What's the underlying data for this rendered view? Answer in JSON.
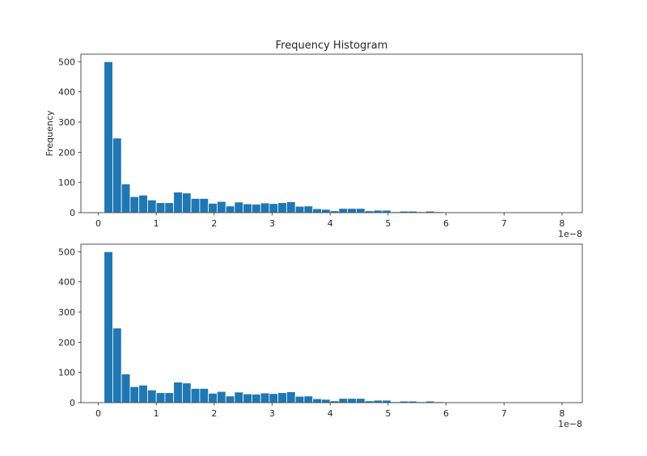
{
  "chart_data": [
    {
      "type": "bar",
      "title": "Frequency Histogram",
      "xlabel": "",
      "ylabel": "Frequency",
      "x_offset_label": "1e−8",
      "xlim": [
        -0.3,
        8.35
      ],
      "ylim": [
        0,
        525
      ],
      "xticks": [
        0,
        1,
        2,
        3,
        4,
        5,
        6,
        7,
        8
      ],
      "yticks": [
        0,
        100,
        200,
        300,
        400,
        500
      ],
      "bin_start": 0.1,
      "bin_width": 0.15,
      "values": [
        500,
        247,
        95,
        53,
        58,
        42,
        33,
        33,
        68,
        65,
        47,
        47,
        31,
        37,
        22,
        35,
        29,
        28,
        32,
        30,
        33,
        36,
        21,
        22,
        13,
        11,
        6,
        14,
        14,
        14,
        6,
        8,
        8,
        3,
        5,
        5,
        3,
        5,
        3,
        2,
        1,
        2,
        0,
        2,
        0,
        1,
        0,
        1,
        0,
        0
      ],
      "color": "#1f77b4"
    },
    {
      "type": "bar",
      "title": "",
      "xlabel": "",
      "ylabel": "",
      "x_offset_label": "1e−8",
      "xlim": [
        -0.3,
        8.35
      ],
      "ylim": [
        0,
        525
      ],
      "xticks": [
        0,
        1,
        2,
        3,
        4,
        5,
        6,
        7,
        8
      ],
      "yticks": [
        0,
        100,
        200,
        300,
        400,
        500
      ],
      "bin_start": 0.1,
      "bin_width": 0.15,
      "values": [
        500,
        247,
        95,
        53,
        58,
        42,
        33,
        33,
        68,
        65,
        47,
        47,
        31,
        37,
        22,
        35,
        29,
        28,
        32,
        30,
        33,
        36,
        21,
        22,
        13,
        11,
        6,
        14,
        14,
        14,
        6,
        8,
        8,
        3,
        5,
        5,
        3,
        5,
        3,
        2,
        1,
        2,
        0,
        2,
        0,
        1,
        0,
        1,
        0,
        0
      ],
      "color": "#1f77b4"
    }
  ]
}
